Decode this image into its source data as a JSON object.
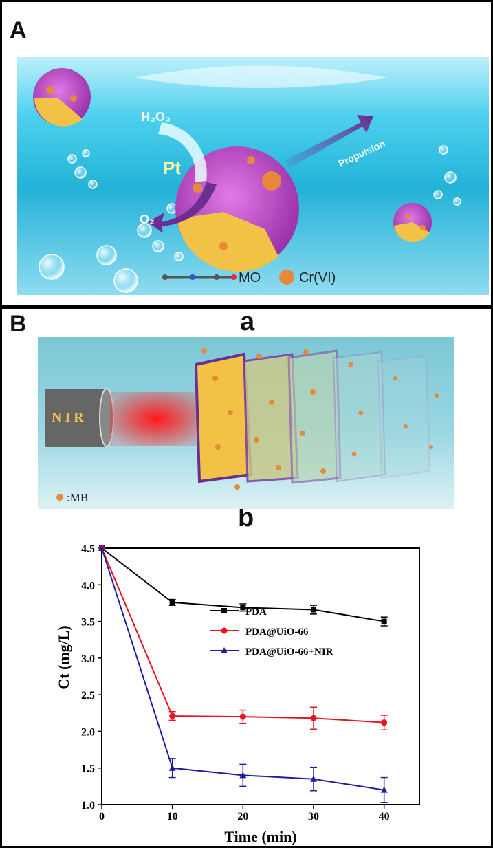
{
  "panels": {
    "A": {
      "label": "A",
      "texts": {
        "h2o2": "H₂O₂",
        "pt": "Pt",
        "o2": "O₂",
        "propulsion": "Propulsion",
        "mo": "MO",
        "cr": "Cr(VI)"
      }
    },
    "B": {
      "label": "B",
      "sub_a": "a",
      "sub_b": "b",
      "texts": {
        "nir": "N I R",
        "mb": ":MB"
      }
    }
  },
  "colors": {
    "water": "#33c2e3",
    "pink": "#c850c8",
    "yellow": "#f2c246",
    "orange": "#e8883a",
    "nir_red": "#ff1a1a"
  },
  "chart_data": {
    "type": "line",
    "xlabel": "Time (min)",
    "ylabel": "Ct (mg/L)",
    "xlim": [
      0,
      45
    ],
    "ylim": [
      1.0,
      4.5
    ],
    "xticks": [
      "0",
      "10",
      "20",
      "30",
      "40"
    ],
    "yticks": [
      "1.0",
      "1.5",
      "2.0",
      "2.5",
      "3.0",
      "3.5",
      "4.0",
      "4.5"
    ],
    "legend_position": "center-right",
    "series": [
      {
        "name": "PDA",
        "color": "#000000",
        "marker": "square",
        "x": [
          0,
          10,
          20,
          30,
          40
        ],
        "y": [
          4.5,
          3.76,
          3.69,
          3.66,
          3.5
        ],
        "err": [
          0,
          0.04,
          0.05,
          0.06,
          0.06
        ]
      },
      {
        "name": "PDA@UiO-66",
        "color": "#e8141e",
        "marker": "circle",
        "x": [
          0,
          10,
          20,
          30,
          40
        ],
        "y": [
          4.5,
          2.21,
          2.2,
          2.18,
          2.12
        ],
        "err": [
          0,
          0.06,
          0.09,
          0.15,
          0.1
        ]
      },
      {
        "name": "PDA@UiO-66+NIR",
        "color": "#1f1f9e",
        "marker": "triangle",
        "x": [
          0,
          10,
          20,
          30,
          40
        ],
        "y": [
          4.5,
          1.5,
          1.4,
          1.35,
          1.2
        ],
        "err": [
          0,
          0.13,
          0.15,
          0.16,
          0.17
        ]
      }
    ]
  }
}
